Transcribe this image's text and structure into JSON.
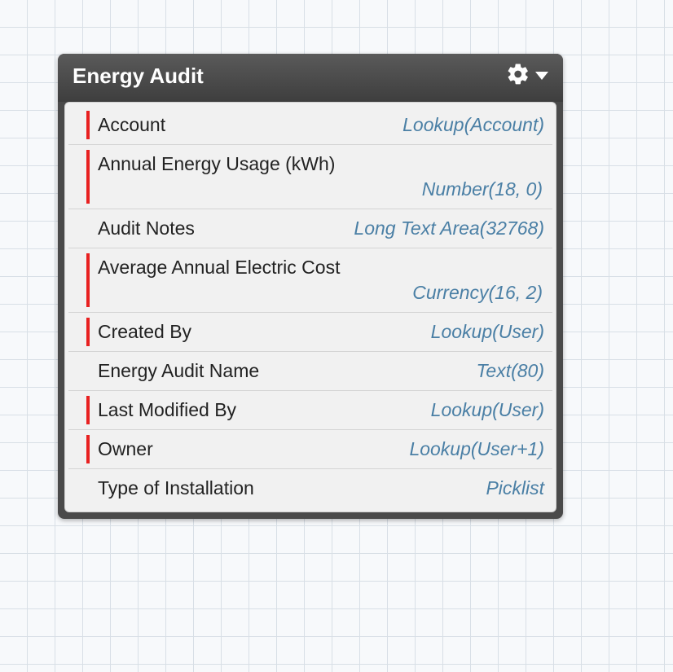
{
  "panel": {
    "title": "Energy Audit",
    "header_bg_top": "#5a5a5a",
    "header_bg_bottom": "#3e3e3e",
    "body_bg": "#f1f1f1",
    "border_color": "#d0d0d0",
    "required_bar_color": "#e82020",
    "field_label_color": "#222222",
    "field_type_color": "#4a7fa5",
    "divider_color": "#d4d4d4"
  },
  "grid": {
    "bg_color": "#f7f9fb",
    "line_color": "#d8dfe6",
    "cell_size": 34
  },
  "fields": [
    {
      "label": "Account",
      "type": "Lookup(Account)",
      "required": true,
      "wrap": false
    },
    {
      "label": "Annual Energy Usage (kWh)",
      "type": "Number(18, 0)",
      "required": true,
      "wrap": true
    },
    {
      "label": "Audit Notes",
      "type": "Long Text Area(32768)",
      "required": false,
      "wrap": false
    },
    {
      "label": "Average Annual Electric Cost",
      "type": "Currency(16, 2)",
      "required": true,
      "wrap": true
    },
    {
      "label": "Created By",
      "type": "Lookup(User)",
      "required": true,
      "wrap": false
    },
    {
      "label": "Energy Audit Name",
      "type": "Text(80)",
      "required": false,
      "wrap": false
    },
    {
      "label": "Last Modified By",
      "type": "Lookup(User)",
      "required": true,
      "wrap": false
    },
    {
      "label": "Owner",
      "type": "Lookup(User+1)",
      "required": true,
      "wrap": false
    },
    {
      "label": "Type of Installation",
      "type": "Picklist",
      "required": false,
      "wrap": false
    }
  ]
}
